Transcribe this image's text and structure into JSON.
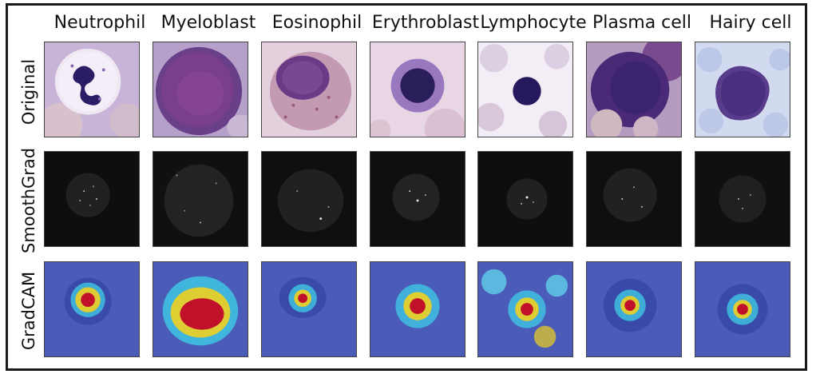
{
  "figure": {
    "columns": [
      {
        "label": "Neutrophil"
      },
      {
        "label": "Myeloblast"
      },
      {
        "label": "Eosinophil"
      },
      {
        "label": "Erythroblast"
      },
      {
        "label": "Lymphocyte"
      },
      {
        "label": "Plasma cell"
      },
      {
        "label": "Hairy cell"
      }
    ],
    "rows": [
      {
        "label": "Original"
      },
      {
        "label": "SmoothGrad"
      },
      {
        "label": "GradCAM"
      }
    ]
  },
  "colors": {
    "original_background": "#d9c7e3",
    "cell_nucleus": "#3a2a7a",
    "cytoplasm": "#a070b8",
    "smoothgrad_background": "#111111",
    "gradcam_background": "#4a5cb8",
    "gradcam_hot": "#c0102a",
    "gradcam_warm": "#f0d020",
    "gradcam_cool": "#40c0e0"
  }
}
